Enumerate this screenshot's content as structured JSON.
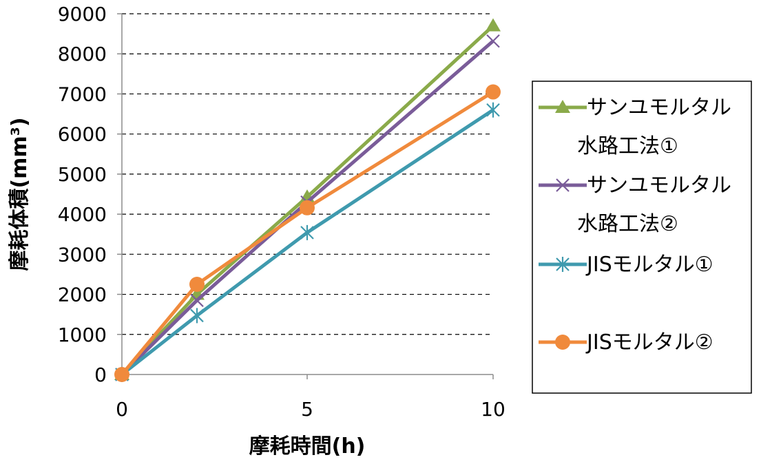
{
  "chart_data": {
    "type": "line",
    "title": "",
    "xlabel": "摩耗時間(h)",
    "ylabel": "摩耗体積(mm³)",
    "ylim": [
      0,
      9000
    ],
    "ytick_labels": [
      "0",
      "1000",
      "2000",
      "3000",
      "4000",
      "5000",
      "6000",
      "7000",
      "8000",
      "9000"
    ],
    "categories": [
      "0",
      "2",
      "5",
      "10"
    ],
    "xtick_labels": [
      "0",
      "5",
      "10"
    ],
    "grid": true,
    "legend_position": "right",
    "series": [
      {
        "name": "サンユモルタル水路工法①",
        "name_lines": [
          "サンユモルタル",
          "水路工法①"
        ],
        "values": [
          0,
          2000,
          4430,
          8700
        ],
        "color": "#8aaa4a",
        "marker": "triangle"
      },
      {
        "name": "サンユモルタル水路工法②",
        "name_lines": [
          "サンユモルタル",
          "水路工法②"
        ],
        "values": [
          0,
          1850,
          4300,
          8320
        ],
        "color": "#7a5c99",
        "marker": "x"
      },
      {
        "name": "JISモルタル①",
        "name_lines": [
          "JISモルタル①"
        ],
        "values": [
          0,
          1470,
          3540,
          6600
        ],
        "color": "#3f9aae",
        "marker": "star"
      },
      {
        "name": "JISモルタル②",
        "name_lines": [
          "JISモルタル②"
        ],
        "values": [
          0,
          2250,
          4160,
          7050
        ],
        "color": "#f08a3c",
        "marker": "circle"
      }
    ]
  }
}
